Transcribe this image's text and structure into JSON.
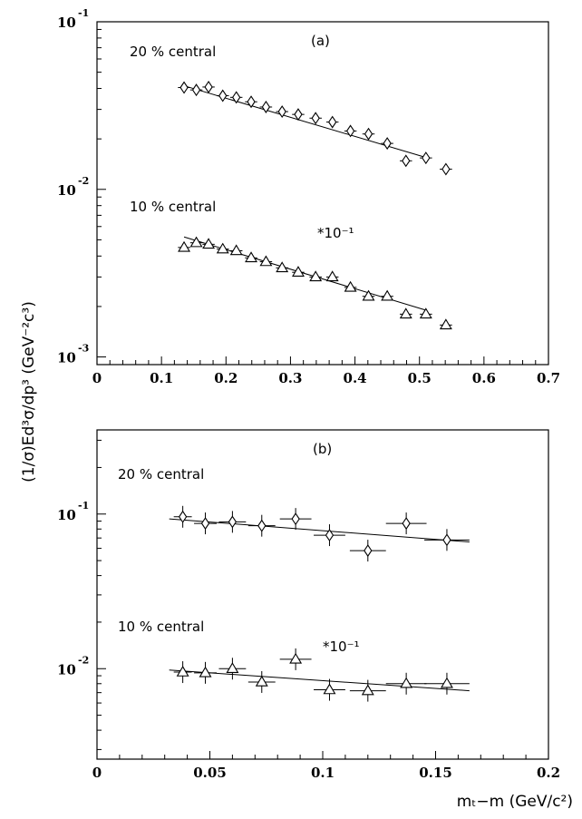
{
  "y_axis_label": "(1/σ)Ed³σ/dp³ (GeV⁻²c³)",
  "x_axis_label": "mₜ−m (GeV/c²)",
  "chart_data": [
    {
      "panel": "(a)",
      "type": "scatter",
      "y_scale": "log",
      "xlim": [
        0,
        0.7
      ],
      "ylim": [
        0.0009,
        0.1
      ],
      "x_ticks": [
        "0",
        "0.1",
        "0.2",
        "0.3",
        "0.4",
        "0.5",
        "0.6",
        "0.7"
      ],
      "y_ticks": [
        {
          "value": 0.1,
          "base": "10",
          "exp": "-1"
        },
        {
          "value": 0.01,
          "base": "10",
          "exp": "-2"
        },
        {
          "value": 0.001,
          "base": "10",
          "exp": "-3"
        }
      ],
      "series": [
        {
          "name": "20 % central",
          "marker": "diamond",
          "x": [
            0.135,
            0.154,
            0.173,
            0.195,
            0.216,
            0.239,
            0.262,
            0.287,
            0.312,
            0.339,
            0.365,
            0.393,
            0.421,
            0.45,
            0.479,
            0.51,
            0.541
          ],
          "y": [
            0.0405,
            0.0392,
            0.0408,
            0.0362,
            0.0354,
            0.0333,
            0.031,
            0.0291,
            0.028,
            0.0266,
            0.0252,
            0.0223,
            0.0214,
            0.0188,
            0.0148,
            0.0154,
            0.0132
          ],
          "fit": {
            "x": [
              0.135,
              0.51
            ],
            "y": [
              0.0415,
              0.0155
            ]
          }
        },
        {
          "name": "10 % central",
          "annotation": "*10⁻¹",
          "marker": "triangle",
          "x": [
            0.135,
            0.154,
            0.173,
            0.195,
            0.216,
            0.239,
            0.262,
            0.287,
            0.312,
            0.339,
            0.365,
            0.393,
            0.421,
            0.45,
            0.479,
            0.51,
            0.541
          ],
          "y": [
            0.0045,
            0.0048,
            0.0047,
            0.0044,
            0.0043,
            0.0039,
            0.0037,
            0.0034,
            0.0032,
            0.003,
            0.003,
            0.0026,
            0.0023,
            0.0023,
            0.0018,
            0.0018,
            0.00155
          ],
          "fit": {
            "x": [
              0.135,
              0.51
            ],
            "y": [
              0.0052,
              0.0019
            ]
          }
        }
      ]
    },
    {
      "panel": "(b)",
      "type": "scatter",
      "y_scale": "log",
      "xlim": [
        0,
        0.2
      ],
      "ylim": [
        0.0026,
        0.35
      ],
      "x_ticks": [
        "0",
        "0.05",
        "0.1",
        "0.15",
        "0.2"
      ],
      "y_ticks": [
        {
          "value": 0.1,
          "base": "10",
          "exp": "-1"
        },
        {
          "value": 0.01,
          "base": "10",
          "exp": "-2"
        }
      ],
      "series": [
        {
          "name": "20 % central",
          "marker": "diamond",
          "x": [
            0.038,
            0.048,
            0.06,
            0.073,
            0.088,
            0.103,
            0.12,
            0.137,
            0.155
          ],
          "y": [
            0.096,
            0.087,
            0.089,
            0.084,
            0.093,
            0.073,
            0.058,
            0.087,
            0.068
          ],
          "x_err": [
            0.004,
            0.005,
            0.006,
            0.006,
            0.007,
            0.007,
            0.008,
            0.009,
            0.01
          ],
          "fit": {
            "x": [
              0.032,
              0.165
            ],
            "y": [
              0.093,
              0.066
            ]
          }
        },
        {
          "name": "10 % central",
          "annotation": "*10⁻¹",
          "marker": "triangle",
          "x": [
            0.038,
            0.048,
            0.06,
            0.073,
            0.088,
            0.103,
            0.12,
            0.137,
            0.155
          ],
          "y": [
            0.0095,
            0.0094,
            0.01,
            0.0082,
            0.0115,
            0.0073,
            0.0072,
            0.008,
            0.008
          ],
          "x_err": [
            0.004,
            0.005,
            0.006,
            0.006,
            0.007,
            0.007,
            0.008,
            0.009,
            0.01
          ],
          "fit": {
            "x": [
              0.032,
              0.165
            ],
            "y": [
              0.0098,
              0.0072
            ]
          }
        }
      ]
    }
  ]
}
